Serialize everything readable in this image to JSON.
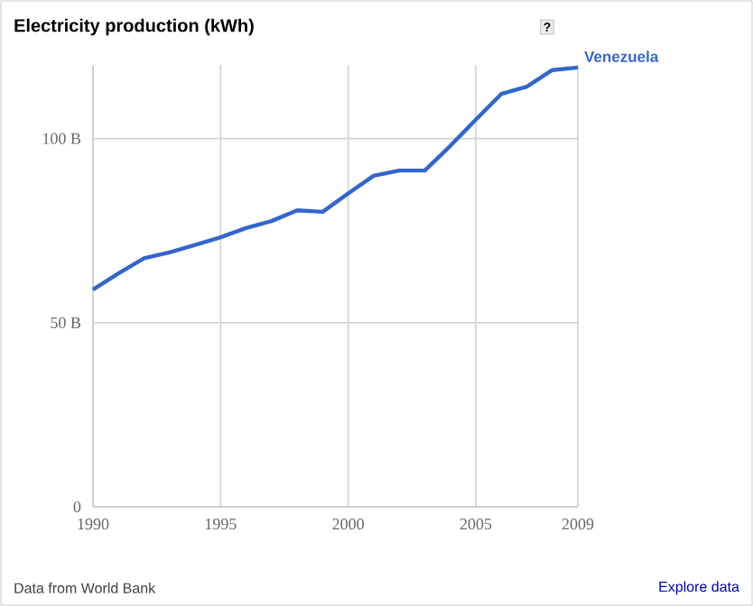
{
  "chart_data": {
    "type": "line",
    "title": "Electricity production (kWh)",
    "x": [
      1990,
      1991,
      1992,
      1993,
      1994,
      1995,
      1996,
      1997,
      1998,
      1999,
      2000,
      2001,
      2002,
      2003,
      2004,
      2005,
      2006,
      2007,
      2008,
      2009
    ],
    "series": [
      {
        "name": "Venezuela",
        "color": "#3366cc",
        "values": [
          59.0,
          63.4,
          67.5,
          69.1,
          71.1,
          73.2,
          75.7,
          77.6,
          80.5,
          80.1,
          85.1,
          89.9,
          91.3,
          91.3,
          98.0,
          105.1,
          112.1,
          114.1,
          118.6,
          119.3
        ]
      }
    ],
    "xlim": [
      1990,
      2009
    ],
    "xticks": [
      1990,
      1995,
      2000,
      2005,
      2009
    ],
    "ylim": [
      0,
      120
    ],
    "yticks": [
      {
        "value": 0,
        "label": "0"
      },
      {
        "value": 50,
        "label": "50 B"
      },
      {
        "value": 100,
        "label": "100 B"
      }
    ],
    "grid": true,
    "annotations": [
      "?",
      "Data from World Bank",
      "Explore data"
    ]
  }
}
